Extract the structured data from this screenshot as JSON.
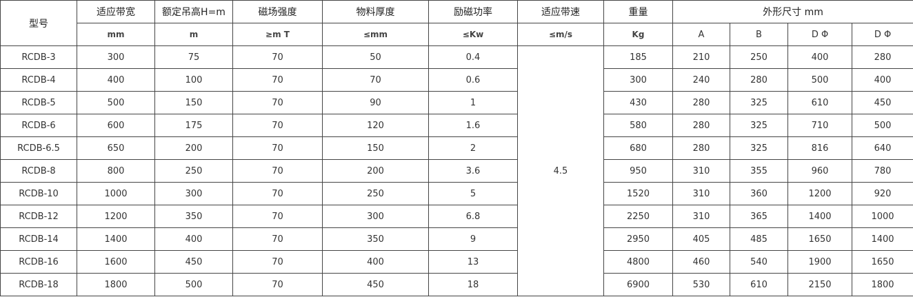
{
  "table": {
    "headers": [
      "型号",
      "适应带宽",
      "额定吊高H=m",
      "磁场强度",
      "物料厚度",
      "励磁功率",
      "适应带速",
      "重量",
      "外形尺寸 mm"
    ],
    "units": [
      "mm",
      "m",
      "≥m T",
      "≤mm",
      "≤Kw",
      "≤m/s",
      "Kg",
      "A",
      "B",
      "D Φ",
      "D Φ"
    ],
    "speed": 4.5,
    "rows": [
      [
        "RCDB-3",
        300,
        75,
        70,
        50,
        0.4,
        185,
        210,
        250,
        400,
        280
      ],
      [
        "RCDB-4",
        400,
        100,
        70,
        70,
        0.6,
        300,
        240,
        280,
        500,
        400
      ],
      [
        "RCDB-5",
        500,
        150,
        70,
        90,
        1,
        430,
        280,
        325,
        610,
        450
      ],
      [
        "RCDB-6",
        600,
        175,
        70,
        120,
        1.6,
        580,
        280,
        325,
        710,
        500
      ],
      [
        "RCDB-6.5",
        650,
        200,
        70,
        150,
        2,
        680,
        280,
        325,
        816,
        640
      ],
      [
        "RCDB-8",
        800,
        250,
        70,
        200,
        3.6,
        950,
        310,
        355,
        960,
        780
      ],
      [
        "RCDB-10",
        1000,
        300,
        70,
        250,
        5,
        1520,
        310,
        360,
        1200,
        920
      ],
      [
        "RCDB-12",
        1200,
        350,
        70,
        300,
        6.8,
        2250,
        310,
        365,
        1400,
        1000
      ],
      [
        "RCDB-14",
        1400,
        400,
        70,
        350,
        9,
        2950,
        405,
        485,
        1650,
        1400
      ],
      [
        "RCDB-16",
        1600,
        450,
        70,
        400,
        13,
        4800,
        460,
        540,
        1900,
        1650
      ],
      [
        "RCDB-18",
        1800,
        500,
        70,
        450,
        18,
        6900,
        530,
        610,
        2150,
        1800
      ]
    ]
  }
}
